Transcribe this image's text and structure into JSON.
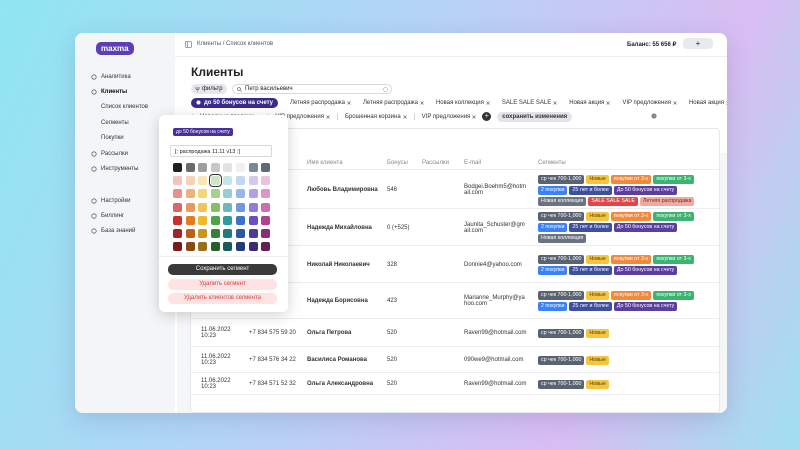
{
  "sidebar": {
    "logo": "maxma",
    "nav": [
      {
        "label": "Аналитика"
      },
      {
        "label": "Клиенты",
        "children": [
          "Список клиентов",
          "Сегменты",
          "Покупки"
        ]
      },
      {
        "label": "Рассылки"
      },
      {
        "label": "Инструменты"
      }
    ],
    "settings": [
      "Настройки",
      "Биллинг",
      "База знаний"
    ]
  },
  "header": {
    "breadcrumb": "Клиенты / Список клиентов",
    "balance": "Баланс: 55 656 ₽",
    "add": "+"
  },
  "page": {
    "title": "Клиенты",
    "filter": "фильтр",
    "search": "Петр васильевич"
  },
  "segments_bar": {
    "active": "до 50 бонусов на счету",
    "row1": [
      "Летняя распродажа",
      "Летняя распродажа",
      "Новая коллекция",
      "SALE SALE SALE",
      "Новая акция",
      "VIP предложения",
      "Новая акция"
    ],
    "row2": [
      "Народные продажи",
      "VIP предложения",
      "Брошенная корзина",
      "VIP предложения"
    ],
    "add": "+",
    "save": "сохранить изменения"
  },
  "popup": {
    "badge": "до 50 бонусов на счету",
    "input": "[: распродажа 11.11 v13 :]",
    "palette": [
      "#1f1f1f",
      "#6b6b6b",
      "#9e9e9e",
      "#c8c8c8",
      "#e3e3e3",
      "#f0f0f0",
      "#7b8794",
      "#5b6b7c",
      "#f6c1c1",
      "#f7d3b5",
      "#f8e7b0",
      "#cfe6c4",
      "#c6e4e4",
      "#c4d6f2",
      "#d3c8ee",
      "#ecc3dc",
      "#e89090",
      "#f0b27a",
      "#f4d67a",
      "#a9d18e",
      "#97cfcf",
      "#98b8e8",
      "#b3a1e3",
      "#dd97c4",
      "#d9666a",
      "#e89a5a",
      "#eec55a",
      "#86bf6a",
      "#6fb8b8",
      "#6f9bdc",
      "#917bd6",
      "#cc6fae",
      "#cc2f2f",
      "#e67a1f",
      "#f0b92a",
      "#4fa34a",
      "#2f9c9c",
      "#3f72c9",
      "#6a4fc0",
      "#b33f8f",
      "#a32424",
      "#bd5f16",
      "#c99420",
      "#37803a",
      "#227a7a",
      "#2d57a0",
      "#4f3a99",
      "#8c2f70",
      "#7a1a1a",
      "#8f4711",
      "#987019",
      "#275e2a",
      "#195a5a",
      "#213f75",
      "#3a2b72",
      "#661f52"
    ],
    "selected": 11,
    "save": "Сохранить сегмент",
    "delete": "Удалить сегмент",
    "delete_clients": "Удалить клиентов сегмента"
  },
  "table": {
    "headers": [
      "Имя клиента",
      "Бонусы",
      "Рассылки",
      "E-mail",
      "Сегменты"
    ],
    "rows": [
      {
        "name": "Любовь Владимировна",
        "bonus": "546",
        "email": "Bodgei.Boehm5@hotmail.com",
        "segments": [
          {
            "label": "ср чек 700-1,000",
            "color": "#5a6372"
          },
          {
            "label": "Новые",
            "color": "#f5c542"
          },
          {
            "label": "покупки от 3-х",
            "color": "#f08a3c"
          },
          {
            "label": "покупки от 3-х",
            "color": "#3cb371"
          },
          {
            "label": "2 покупки",
            "color": "#3b82f6"
          },
          {
            "label": "25 лет и более",
            "color": "#3d4f9e"
          },
          {
            "label": "До 50 бонусов на счету",
            "color": "#5b3fa0"
          },
          {
            "label": "Новая коллекция",
            "color": "#6b7280"
          },
          {
            "label": "SALE SALE SALE",
            "color": "#e04848"
          },
          {
            "label": "Летняя распродажа",
            "color": "#f4a7a7"
          }
        ]
      },
      {
        "name": "Надежда Михайловна",
        "bonus": "0 (+525)",
        "email": "Jaunita_Schuster@gmail.com",
        "segments": [
          {
            "label": "ср чек 700-1,000",
            "color": "#5a6372"
          },
          {
            "label": "Новые",
            "color": "#f5c542"
          },
          {
            "label": "покупки от 3-х",
            "color": "#f08a3c"
          },
          {
            "label": "покупки от 3-х",
            "color": "#3cb371"
          },
          {
            "label": "2 покупки",
            "color": "#3b82f6"
          },
          {
            "label": "25 лет и более",
            "color": "#3d4f9e"
          },
          {
            "label": "До 50 бонусов на счету",
            "color": "#5b3fa0"
          },
          {
            "label": "Новая коллекция",
            "color": "#6b7280"
          }
        ]
      },
      {
        "name": "Николай Николаевич",
        "bonus": "328",
        "email": "Donnie4@yahoo.com",
        "segments": [
          {
            "label": "ср чек 700-1,000",
            "color": "#5a6372"
          },
          {
            "label": "Новые",
            "color": "#f5c542"
          },
          {
            "label": "покупки от 3-х",
            "color": "#f08a3c"
          },
          {
            "label": "покупки от 3-х",
            "color": "#3cb371"
          },
          {
            "label": "2 покупки",
            "color": "#3b82f6"
          },
          {
            "label": "25 лет и более",
            "color": "#3d4f9e"
          },
          {
            "label": "До 50 бонусов на счету",
            "color": "#5b3fa0"
          }
        ]
      },
      {
        "name": "Надежда Борисовна",
        "bonus": "423",
        "email": "Marianne_Murphy@yahoo.com",
        "segments": [
          {
            "label": "ср чек 700-1,000",
            "color": "#5a6372"
          },
          {
            "label": "Новые",
            "color": "#f5c542"
          },
          {
            "label": "покупки от 3-х",
            "color": "#f08a3c"
          },
          {
            "label": "покупки от 3-х",
            "color": "#3cb371"
          },
          {
            "label": "2 покупки",
            "color": "#3b82f6"
          },
          {
            "label": "25 лет и более",
            "color": "#3d4f9e"
          },
          {
            "label": "До 50 бонусов на счету",
            "color": "#5b3fa0"
          }
        ]
      },
      {
        "date": "11.06.2022 10:23",
        "phone": "+7 834 575 59 20",
        "name": "Ольга Петрова",
        "bonus": "520",
        "email": "Raven99@hotmail.com",
        "segments": [
          {
            "label": "ср чек 700-1,000",
            "color": "#5a6372"
          },
          {
            "label": "Новые",
            "color": "#f5c542"
          }
        ]
      },
      {
        "date": "11.06.2022 10:23",
        "phone": "+7 834 576 34 22",
        "name": "Василиса Романова",
        "bonus": "520",
        "email": "090we9@hotmail.com",
        "segments": [
          {
            "label": "ср чек 700-1,000",
            "color": "#5a6372"
          },
          {
            "label": "Новые",
            "color": "#f5c542"
          }
        ]
      },
      {
        "date": "11.06.2022 10:23",
        "phone": "+7 834 571 52 32",
        "name": "Ольга Александровна",
        "bonus": "520",
        "email": "Raven99@hotmail.com",
        "segments": [
          {
            "label": "ср чек 700-1,000",
            "color": "#5a6372"
          },
          {
            "label": "Новые",
            "color": "#f5c542"
          }
        ]
      }
    ]
  }
}
